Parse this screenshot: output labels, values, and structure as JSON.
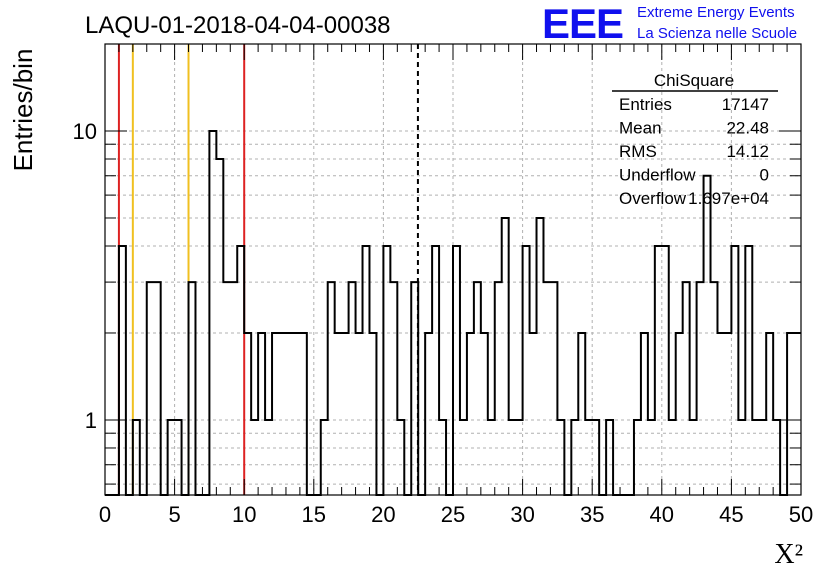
{
  "title": "LAQU-01-2018-04-04-00038",
  "logo": {
    "text": "EEE",
    "line1": "Extreme Energy Events",
    "line2": "La Scienza nelle Scuole",
    "color": "#1010ee"
  },
  "stats": {
    "name": "ChiSquare",
    "rows": [
      {
        "label": "Entries",
        "value": "17147"
      },
      {
        "label": "Mean",
        "value": "22.48"
      },
      {
        "label": "RMS",
        "value": "14.12"
      },
      {
        "label": "Underflow",
        "value": "0"
      },
      {
        "label": "Overflow",
        "value": "1.697e+04"
      }
    ]
  },
  "chart_data": {
    "type": "bar",
    "style": "step-histogram",
    "xlabel": "X²",
    "ylabel": "Entries/bin",
    "xlim": [
      0,
      50
    ],
    "ylim": [
      0.55,
      20
    ],
    "yscale": "log",
    "grid": true,
    "bin_width": 0.5,
    "x_ticks": [
      "0",
      "5",
      "10",
      "15",
      "20",
      "25",
      "30",
      "35",
      "40",
      "45",
      "50"
    ],
    "y_ticks": [
      "1",
      "10"
    ],
    "values": [
      0,
      0,
      4,
      0,
      1,
      0,
      3,
      3,
      0,
      1,
      1,
      0,
      3,
      0,
      0,
      10,
      8,
      3,
      3,
      4,
      2,
      1,
      2,
      1,
      2,
      2,
      2,
      2,
      2,
      0,
      0,
      1,
      3,
      2,
      2,
      3,
      2,
      4,
      2,
      0,
      4,
      3,
      1,
      0,
      3,
      0,
      2,
      4,
      1,
      0,
      4,
      1,
      2,
      3,
      2,
      1,
      3,
      5,
      1,
      1,
      4,
      2,
      5,
      3,
      3,
      1,
      0,
      1,
      2,
      1,
      1,
      0,
      1,
      0,
      0,
      0,
      1,
      2,
      1,
      4,
      4,
      1,
      2,
      3,
      1,
      3,
      7,
      3,
      2,
      2,
      4,
      1,
      4,
      1,
      1,
      2,
      1,
      0,
      2,
      2
    ],
    "vertical_lines": [
      {
        "x": 1,
        "color": "#dd2222",
        "style": "solid"
      },
      {
        "x": 2,
        "color": "#f0c020",
        "style": "solid"
      },
      {
        "x": 6,
        "color": "#f0c020",
        "style": "solid"
      },
      {
        "x": 10,
        "color": "#dd2222",
        "style": "solid"
      },
      {
        "x": 22.48,
        "color": "#000000",
        "style": "dashed"
      }
    ]
  }
}
